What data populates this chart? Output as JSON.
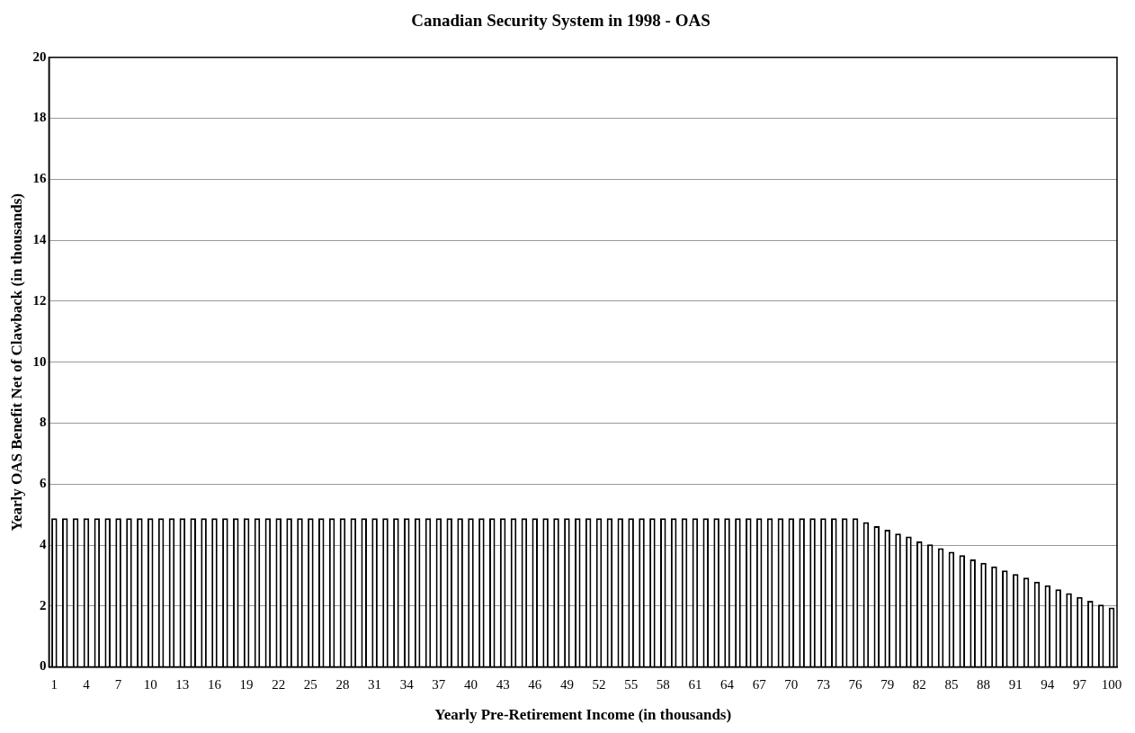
{
  "chart_data": {
    "type": "bar",
    "title": "Canadian Security System in 1998 - OAS",
    "xlabel": "Yearly Pre-Retirement Income (in thousands)",
    "ylabel": "Yearly OAS Benefit Net of Clawback (in thousands)",
    "categories": [
      "1",
      null,
      null,
      "4",
      null,
      null,
      "7",
      null,
      null,
      "10",
      null,
      null,
      "13",
      null,
      null,
      "16",
      null,
      null,
      "19",
      null,
      null,
      "22",
      null,
      null,
      "25",
      null,
      null,
      "28",
      null,
      null,
      "31",
      null,
      null,
      "34",
      null,
      null,
      "37",
      null,
      null,
      "40",
      null,
      null,
      "43",
      null,
      null,
      "46",
      null,
      null,
      "49",
      null,
      null,
      "52",
      null,
      null,
      "55",
      null,
      null,
      "58",
      null,
      null,
      "61",
      null,
      null,
      "64",
      null,
      null,
      "67",
      null,
      null,
      "70",
      null,
      null,
      "73",
      null,
      null,
      "76",
      null,
      null,
      "79",
      null,
      null,
      "82",
      null,
      null,
      "85",
      null,
      null,
      "88",
      null,
      null,
      "91",
      null,
      null,
      "94",
      null,
      null,
      "97",
      null,
      null,
      "100"
    ],
    "values": [
      4.88,
      4.88,
      4.88,
      4.88,
      4.88,
      4.88,
      4.88,
      4.88,
      4.88,
      4.88,
      4.88,
      4.88,
      4.88,
      4.88,
      4.88,
      4.88,
      4.88,
      4.88,
      4.88,
      4.88,
      4.88,
      4.88,
      4.88,
      4.88,
      4.88,
      4.88,
      4.88,
      4.88,
      4.88,
      4.88,
      4.88,
      4.88,
      4.88,
      4.88,
      4.88,
      4.88,
      4.88,
      4.88,
      4.88,
      4.88,
      4.88,
      4.88,
      4.88,
      4.88,
      4.88,
      4.88,
      4.88,
      4.88,
      4.88,
      4.88,
      4.88,
      4.88,
      4.88,
      4.88,
      4.88,
      4.88,
      4.88,
      4.88,
      4.88,
      4.88,
      4.88,
      4.88,
      4.88,
      4.88,
      4.88,
      4.88,
      4.88,
      4.88,
      4.88,
      4.88,
      4.88,
      4.88,
      4.88,
      4.88,
      4.88,
      4.88,
      4.75,
      4.62,
      4.5,
      4.38,
      4.28,
      4.12,
      4.02,
      3.9,
      3.78,
      3.67,
      3.53,
      3.42,
      3.3,
      3.17,
      3.05,
      2.93,
      2.8,
      2.68,
      2.55,
      2.42,
      2.3,
      2.17,
      2.05,
      1.95
    ],
    "color": "#ffffff",
    "ylim": [
      0,
      20
    ],
    "yticks": [
      0,
      2,
      4,
      6,
      8,
      10,
      12,
      14,
      16,
      18,
      20
    ],
    "grid": "y"
  }
}
